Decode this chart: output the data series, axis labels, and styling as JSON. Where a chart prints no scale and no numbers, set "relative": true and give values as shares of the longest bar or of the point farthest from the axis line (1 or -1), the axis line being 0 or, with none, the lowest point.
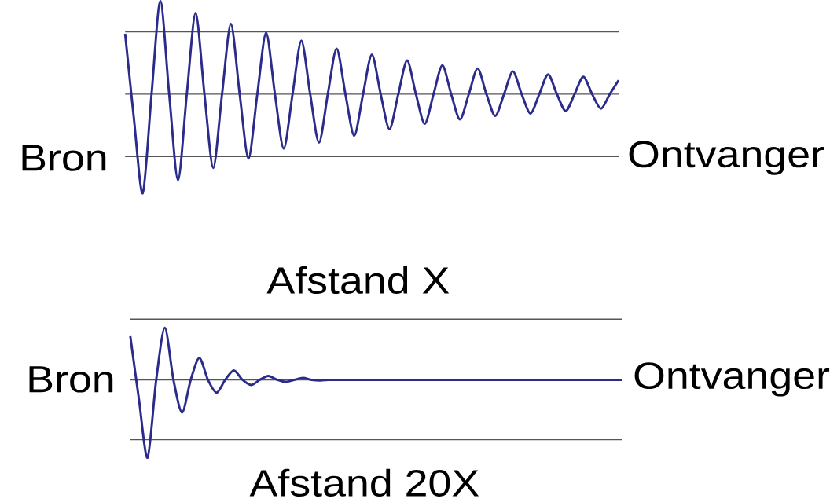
{
  "chart_data": [
    {
      "type": "line",
      "relative": true,
      "color": "#2b2b8c",
      "ylabel": "Bron",
      "y2label": "Ontvanger",
      "xlabel": "Afstand X",
      "categories": [
        null,
        null,
        null,
        null,
        null,
        null,
        null,
        null,
        null,
        null,
        null,
        null,
        null,
        null,
        null,
        null,
        null,
        null,
        null,
        null,
        null,
        null,
        null,
        null,
        null,
        null,
        null,
        null,
        null,
        null,
        null,
        null,
        null,
        null,
        null,
        null,
        null,
        null,
        null,
        null,
        null,
        null,
        null,
        null,
        null,
        null,
        null,
        null,
        null,
        null,
        null,
        null,
        null,
        null,
        null,
        null,
        null
      ],
      "values": [
        0.61,
        -0.25,
        -1,
        0,
        0.94,
        0,
        -0.87,
        0,
        0.82,
        0,
        -0.745,
        0,
        0.71,
        0,
        -0.65,
        0,
        0.62,
        0,
        -0.55,
        0,
        0.54,
        0,
        -0.49,
        0,
        0.46,
        0,
        -0.42,
        0,
        0.4,
        0,
        -0.354,
        0,
        0.34,
        0,
        -0.3,
        0,
        0.29,
        0,
        -0.255,
        0,
        0.26,
        0,
        -0.22,
        0,
        0.23,
        0,
        -0.195,
        0,
        0.2,
        0,
        -0.17,
        0,
        0.175,
        0,
        -0.146,
        0,
        0.14
      ],
      "ref_lines": [
        {
          "axis": "y",
          "value": 0.63,
          "color": "#555555"
        },
        {
          "axis": "y",
          "value": 0,
          "color": "#555555"
        },
        {
          "axis": "y",
          "value": -0.63,
          "color": "#555555"
        }
      ]
    },
    {
      "type": "line",
      "relative": true,
      "color": "#2b2b8c",
      "ylabel": "Bron",
      "y2label": "Ontvanger",
      "xlabel": "Afstand 20X",
      "categories": [
        null,
        null,
        null,
        null,
        null,
        null,
        null,
        null,
        null,
        null,
        null,
        null,
        null,
        null,
        null,
        null,
        null,
        null,
        null,
        null,
        null,
        null,
        null,
        null,
        null,
        null,
        null,
        null,
        null,
        null,
        null,
        null,
        null,
        null,
        null,
        null,
        null,
        null,
        null,
        null,
        null,
        null,
        null,
        null,
        null,
        null,
        null,
        null,
        null,
        null,
        null,
        null,
        null,
        null,
        null,
        null,
        null,
        null
      ],
      "values": [
        0.56,
        -0.25,
        -1,
        0,
        0.67,
        0,
        -0.42,
        0,
        0.28,
        0,
        -0.165,
        0,
        0.12,
        0,
        -0.066,
        0,
        0.05,
        0,
        -0.025,
        0,
        0.025,
        0,
        -0.008,
        0,
        0,
        0,
        0,
        0,
        0,
        0,
        0,
        0,
        0,
        0,
        0,
        0,
        0,
        0,
        0,
        0,
        0,
        0,
        0,
        0,
        0,
        0,
        0,
        0,
        0,
        0,
        0,
        0,
        0,
        0,
        0,
        0,
        0,
        0
      ],
      "ref_lines": [
        {
          "axis": "y",
          "value": 0.78,
          "color": "#555555"
        },
        {
          "axis": "y",
          "value": 0,
          "color": "#555555"
        },
        {
          "axis": "y",
          "value": -0.77,
          "color": "#555555"
        }
      ]
    }
  ]
}
